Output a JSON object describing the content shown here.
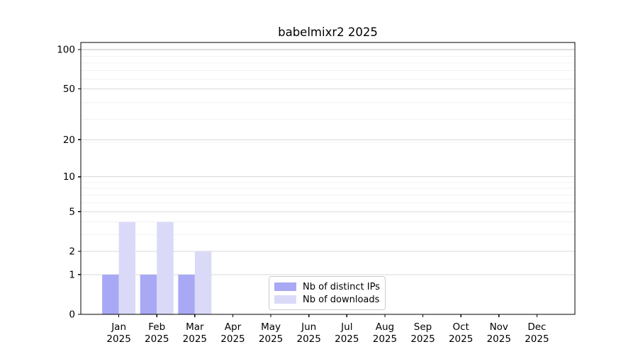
{
  "figure": {
    "title": "babelmixr2 2025"
  },
  "chart_data": {
    "type": "bar",
    "title": "babelmixr2 2025",
    "xlabel": "",
    "ylabel": "",
    "x_tick_labels": [
      {
        "month": "Jan",
        "year": "2025"
      },
      {
        "month": "Feb",
        "year": "2025"
      },
      {
        "month": "Mar",
        "year": "2025"
      },
      {
        "month": "Apr",
        "year": "2025"
      },
      {
        "month": "May",
        "year": "2025"
      },
      {
        "month": "Jun",
        "year": "2025"
      },
      {
        "month": "Jul",
        "year": "2025"
      },
      {
        "month": "Aug",
        "year": "2025"
      },
      {
        "month": "Sep",
        "year": "2025"
      },
      {
        "month": "Oct",
        "year": "2025"
      },
      {
        "month": "Nov",
        "year": "2025"
      },
      {
        "month": "Dec",
        "year": "2025"
      }
    ],
    "series": [
      {
        "name": "Nb of distinct IPs",
        "color": "#a8a8f5",
        "values": [
          1,
          1,
          1,
          0,
          0,
          0,
          0,
          0,
          0,
          0,
          0,
          0
        ]
      },
      {
        "name": "Nb of downloads",
        "color": "#dadaf8",
        "values": [
          4,
          4,
          2,
          0,
          0,
          0,
          0,
          0,
          0,
          0,
          0,
          0
        ]
      }
    ],
    "y_ticks": [
      0,
      1,
      2,
      5,
      10,
      20,
      50,
      100
    ],
    "y_minor_gridlines": [
      3,
      4,
      6,
      7,
      8,
      9,
      19,
      29,
      39,
      59,
      69,
      79,
      89
    ],
    "y_scale": "log1p",
    "ylim": [
      0,
      113
    ],
    "grid": true,
    "legend_position": "lower center",
    "colors": {
      "axis": "#000000",
      "text": "#000000",
      "major_grid": "#d9d9d9",
      "top_grid": "#bdbdbd",
      "minor_grid": "#f2f2f2",
      "legend_border": "#cccccc"
    }
  }
}
